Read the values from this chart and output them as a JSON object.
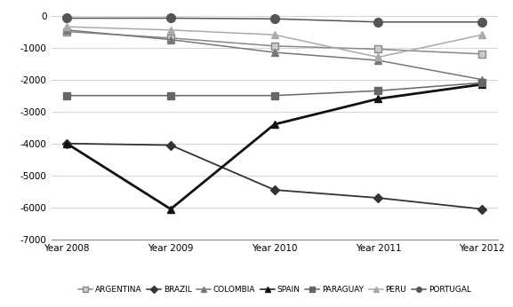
{
  "years": [
    "Year 2008",
    "Year 2009",
    "Year 2010",
    "Year 2011",
    "Year 2012"
  ],
  "series": {
    "ARGENTINA": {
      "values": [
        -500,
        -700,
        -950,
        -1050,
        -1200
      ],
      "color": "#888888",
      "marker": "s",
      "markersize": 6,
      "linewidth": 1.1,
      "markerfacecolor": "#cccccc",
      "markeredgecolor": "#888888"
    },
    "BRAZIL": {
      "values": [
        -4000,
        -4050,
        -5450,
        -5700,
        -6050
      ],
      "color": "#333333",
      "marker": "D",
      "markersize": 5,
      "linewidth": 1.3,
      "markerfacecolor": "#333333",
      "markeredgecolor": "#333333"
    },
    "COLOMBIA": {
      "values": [
        -450,
        -750,
        -1150,
        -1400,
        -2000
      ],
      "color": "#777777",
      "marker": "^",
      "markersize": 6,
      "linewidth": 1.1,
      "markerfacecolor": "#777777",
      "markeredgecolor": "#777777"
    },
    "SPAIN": {
      "values": [
        -4000,
        -6050,
        -3400,
        -2600,
        -2150
      ],
      "color": "#111111",
      "marker": "^",
      "markersize": 6,
      "linewidth": 2.0,
      "markerfacecolor": "#111111",
      "markeredgecolor": "#111111"
    },
    "PARAGUAY": {
      "values": [
        -2500,
        -2500,
        -2500,
        -2350,
        -2100
      ],
      "color": "#666666",
      "marker": "s",
      "markersize": 6,
      "linewidth": 1.1,
      "markerfacecolor": "#666666",
      "markeredgecolor": "#666666"
    },
    "PERU": {
      "values": [
        -350,
        -450,
        -600,
        -1300,
        -600
      ],
      "color": "#aaaaaa",
      "marker": "^",
      "markersize": 6,
      "linewidth": 1.1,
      "markerfacecolor": "#aaaaaa",
      "markeredgecolor": "#aaaaaa"
    },
    "PORTUGAL": {
      "values": [
        -80,
        -80,
        -100,
        -200,
        -200
      ],
      "color": "#555555",
      "marker": "o",
      "markersize": 7,
      "linewidth": 1.1,
      "markerfacecolor": "#555555",
      "markeredgecolor": "#555555"
    }
  },
  "ylim": [
    -7000,
    200
  ],
  "yticks": [
    0,
    -1000,
    -2000,
    -3000,
    -4000,
    -5000,
    -6000,
    -7000
  ],
  "grid": true,
  "legend_fontsize": 6.5,
  "tick_fontsize": 7.5,
  "figsize": [
    5.77,
    3.46
  ],
  "dpi": 100
}
